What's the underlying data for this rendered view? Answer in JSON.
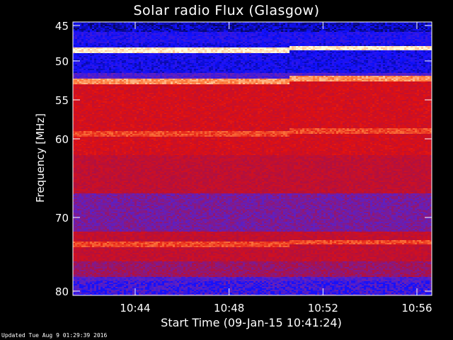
{
  "page": {
    "updated_text": "Updated Tue Aug  9 01:29:39 2016"
  },
  "chart_data": {
    "type": "heatmap",
    "title": "Solar radio Flux (Glasgow)",
    "xlabel": "Start Time (09-Jan-15 10:41:24)",
    "ylabel": "Frequency [MHz]",
    "x_start": "10:41:24",
    "x_end": "10:56:24",
    "xlim_minutes": [
      41.4,
      56.4
    ],
    "ylim": [
      45,
      80
    ],
    "x_ticks": [
      {
        "label": "10:44",
        "value": 44
      },
      {
        "label": "10:48",
        "value": 48
      },
      {
        "label": "10:52",
        "value": 52
      },
      {
        "label": "10:56",
        "value": 56
      }
    ],
    "y_ticks": [
      {
        "label": "45",
        "value": 45
      },
      {
        "label": "50",
        "value": 50
      },
      {
        "label": "55",
        "value": 55
      },
      {
        "label": "60",
        "value": 60
      },
      {
        "label": "70",
        "value": 70
      },
      {
        "label": "80",
        "value": 80
      }
    ],
    "colormap": [
      "#000000",
      "#1010ff",
      "#6020c0",
      "#b01040",
      "#e01010",
      "#ff8040",
      "#ffffe0"
    ],
    "bright_lines_mhz": [
      48.5,
      52.6,
      59.3,
      73.7
    ],
    "split_time": "10:50:30"
  }
}
